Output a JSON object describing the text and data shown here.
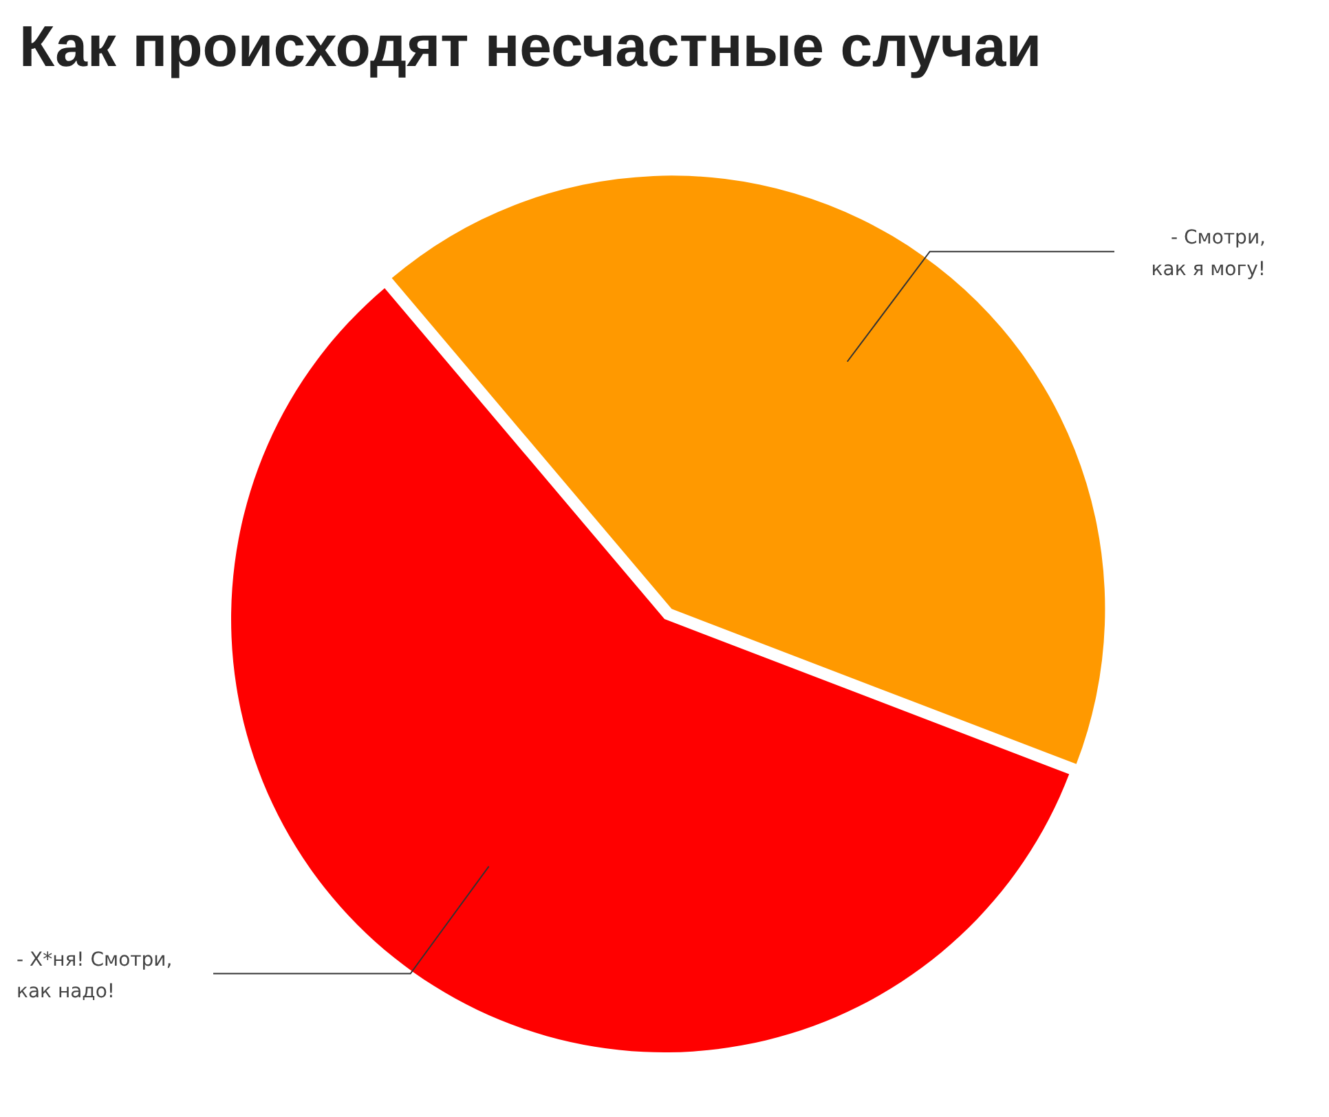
{
  "chart_data": {
    "type": "pie",
    "title": "Как происходят несчастные случаи",
    "categories": [
      "- Смотри,\nкак я могу!",
      "- Х*ня! Смотри,\nкак надо!"
    ],
    "values": [
      42,
      58
    ],
    "colors": [
      "#ff9900",
      "#ff0000"
    ]
  }
}
